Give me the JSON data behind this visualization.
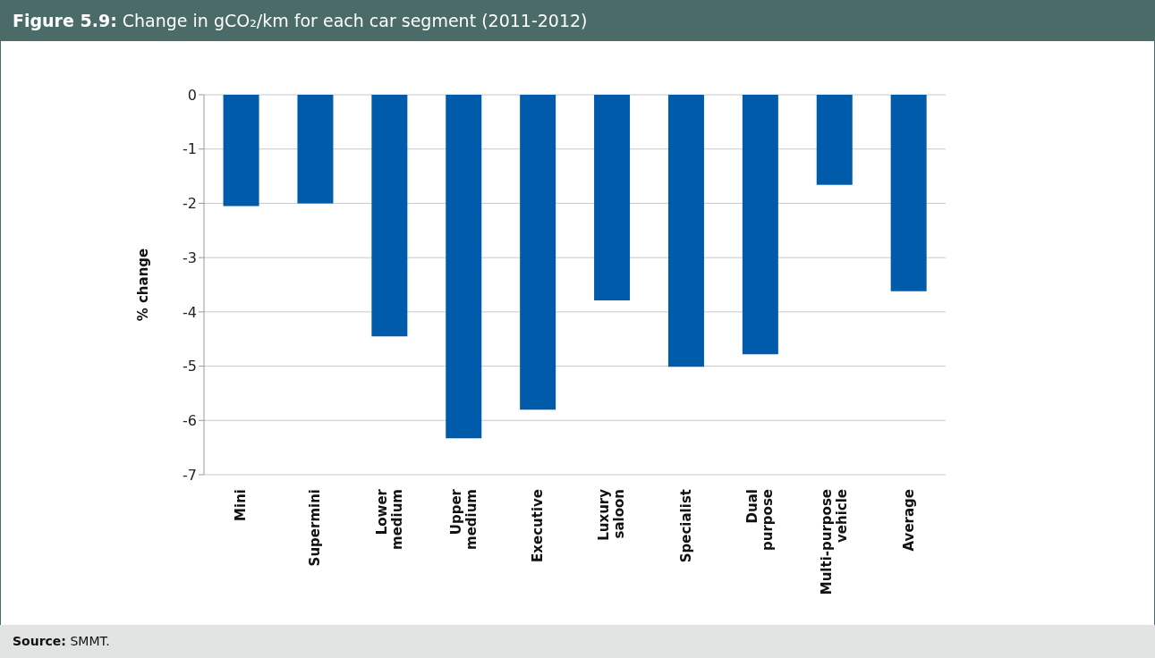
{
  "chart_data": {
    "type": "bar",
    "title": "Figure 5.9: Change in gCO₂/km for each car segment (2011-2012)",
    "ylabel": "% change",
    "categories": [
      "Mini",
      "Supermini",
      "Lower medium",
      "Upper medium",
      "Executive",
      "Luxury saloon",
      "Specialist",
      "Dual purpose",
      "Multi-purpose vehicle",
      "Average"
    ],
    "values": [
      -2.05,
      -2.0,
      -4.45,
      -6.33,
      -5.8,
      -3.79,
      -5.01,
      -4.78,
      -1.66,
      -3.62
    ],
    "color": "#005bab",
    "ylim": [
      -7,
      0
    ],
    "yticks": [
      -7,
      -6,
      -5,
      -4,
      -3,
      -2,
      -1,
      0
    ],
    "grid": "y",
    "annotations": [
      "Source: SMMT."
    ]
  }
}
